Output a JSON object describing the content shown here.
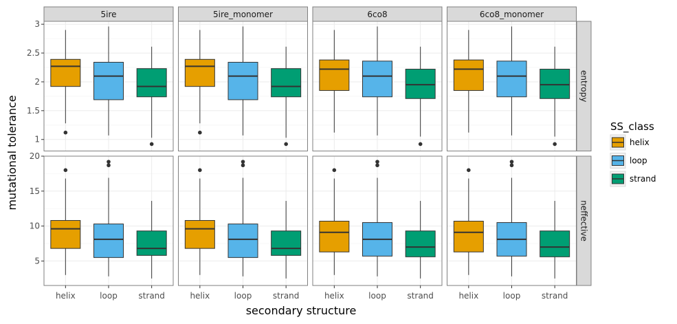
{
  "chart_data": {
    "type": "box",
    "xlabel": "secondary structure",
    "ylabel": "mutational tolerance",
    "categories": [
      "helix",
      "loop",
      "strand"
    ],
    "facet_columns": [
      "5ire",
      "5ire_monomer",
      "6co8",
      "6co8_monomer"
    ],
    "facet_rows": [
      {
        "name": "entropy",
        "ylim": [
          0.8,
          3.05
        ],
        "ticks": [
          1,
          1.5,
          2,
          2.5,
          3
        ],
        "tick_labels": [
          "1",
          "1.5",
          "2",
          "2.5",
          "3"
        ]
      },
      {
        "name": "neffective",
        "ylim": [
          1.5,
          20.0
        ],
        "ticks": [
          5,
          10,
          15,
          20
        ],
        "tick_labels": [
          "5",
          "10",
          "15",
          "20"
        ]
      }
    ],
    "legend": {
      "title": "SS_class",
      "position": "right",
      "items": [
        {
          "label": "helix",
          "color": "#E69F00"
        },
        {
          "label": "loop",
          "color": "#56B4E9"
        },
        {
          "label": "strand",
          "color": "#009E73"
        }
      ]
    },
    "panels": {
      "entropy": {
        "5ire": [
          {
            "category": "helix",
            "whisker_low": 1.28,
            "q1": 1.92,
            "median": 2.27,
            "q3": 2.39,
            "whisker_high": 2.9,
            "outliers": [
              1.12
            ]
          },
          {
            "category": "loop",
            "whisker_low": 1.07,
            "q1": 1.69,
            "median": 2.1,
            "q3": 2.34,
            "whisker_high": 2.96,
            "outliers": []
          },
          {
            "category": "strand",
            "whisker_low": 1.03,
            "q1": 1.74,
            "median": 1.92,
            "q3": 2.23,
            "whisker_high": 2.61,
            "outliers": [
              0.92
            ]
          }
        ],
        "5ire_monomer": [
          {
            "category": "helix",
            "whisker_low": 1.28,
            "q1": 1.92,
            "median": 2.27,
            "q3": 2.39,
            "whisker_high": 2.9,
            "outliers": [
              1.12
            ]
          },
          {
            "category": "loop",
            "whisker_low": 1.07,
            "q1": 1.69,
            "median": 2.1,
            "q3": 2.34,
            "whisker_high": 2.96,
            "outliers": []
          },
          {
            "category": "strand",
            "whisker_low": 1.03,
            "q1": 1.74,
            "median": 1.92,
            "q3": 2.23,
            "whisker_high": 2.61,
            "outliers": [
              0.92
            ]
          }
        ],
        "6co8": [
          {
            "category": "helix",
            "whisker_low": 1.12,
            "q1": 1.85,
            "median": 2.22,
            "q3": 2.38,
            "whisker_high": 2.9,
            "outliers": []
          },
          {
            "category": "loop",
            "whisker_low": 1.07,
            "q1": 1.74,
            "median": 2.1,
            "q3": 2.36,
            "whisker_high": 2.96,
            "outliers": []
          },
          {
            "category": "strand",
            "whisker_low": 1.05,
            "q1": 1.71,
            "median": 1.95,
            "q3": 2.22,
            "whisker_high": 2.61,
            "outliers": [
              0.92
            ]
          }
        ],
        "6co8_monomer": [
          {
            "category": "helix",
            "whisker_low": 1.12,
            "q1": 1.85,
            "median": 2.22,
            "q3": 2.38,
            "whisker_high": 2.9,
            "outliers": []
          },
          {
            "category": "loop",
            "whisker_low": 1.07,
            "q1": 1.74,
            "median": 2.1,
            "q3": 2.36,
            "whisker_high": 2.96,
            "outliers": []
          },
          {
            "category": "strand",
            "whisker_low": 1.05,
            "q1": 1.71,
            "median": 1.95,
            "q3": 2.22,
            "whisker_high": 2.61,
            "outliers": [
              0.92
            ]
          }
        ]
      },
      "neffective": {
        "5ire": [
          {
            "category": "helix",
            "whisker_low": 3.0,
            "q1": 6.8,
            "median": 9.6,
            "q3": 10.8,
            "whisker_high": 16.8,
            "outliers": [
              18.0
            ]
          },
          {
            "category": "loop",
            "whisker_low": 2.8,
            "q1": 5.5,
            "median": 8.1,
            "q3": 10.3,
            "whisker_high": 16.9,
            "outliers": [
              18.7,
              19.2
            ]
          },
          {
            "category": "strand",
            "whisker_low": 2.5,
            "q1": 5.8,
            "median": 6.8,
            "q3": 9.3,
            "whisker_high": 13.6,
            "outliers": []
          }
        ],
        "5ire_monomer": [
          {
            "category": "helix",
            "whisker_low": 3.0,
            "q1": 6.8,
            "median": 9.6,
            "q3": 10.8,
            "whisker_high": 16.8,
            "outliers": [
              18.0
            ]
          },
          {
            "category": "loop",
            "whisker_low": 2.8,
            "q1": 5.5,
            "median": 8.1,
            "q3": 10.3,
            "whisker_high": 16.9,
            "outliers": [
              18.7,
              19.2
            ]
          },
          {
            "category": "strand",
            "whisker_low": 2.5,
            "q1": 5.8,
            "median": 6.8,
            "q3": 9.3,
            "whisker_high": 13.6,
            "outliers": []
          }
        ],
        "6co8": [
          {
            "category": "helix",
            "whisker_low": 3.0,
            "q1": 6.3,
            "median": 9.1,
            "q3": 10.7,
            "whisker_high": 16.8,
            "outliers": [
              18.0
            ]
          },
          {
            "category": "loop",
            "whisker_low": 2.8,
            "q1": 5.7,
            "median": 8.1,
            "q3": 10.5,
            "whisker_high": 16.9,
            "outliers": [
              18.7,
              19.2
            ]
          },
          {
            "category": "strand",
            "whisker_low": 2.5,
            "q1": 5.6,
            "median": 7.0,
            "q3": 9.3,
            "whisker_high": 13.6,
            "outliers": []
          }
        ],
        "6co8_monomer": [
          {
            "category": "helix",
            "whisker_low": 3.0,
            "q1": 6.3,
            "median": 9.1,
            "q3": 10.7,
            "whisker_high": 16.8,
            "outliers": [
              18.0
            ]
          },
          {
            "category": "loop",
            "whisker_low": 2.8,
            "q1": 5.7,
            "median": 8.1,
            "q3": 10.5,
            "whisker_high": 16.9,
            "outliers": [
              18.7,
              19.2
            ]
          },
          {
            "category": "strand",
            "whisker_low": 2.5,
            "q1": 5.6,
            "median": 7.0,
            "q3": 9.3,
            "whisker_high": 13.6,
            "outliers": []
          }
        ]
      }
    },
    "grid": true,
    "style_colors": {
      "panel_background": "#ffffff",
      "panel_border": "#7f7f7f",
      "strip_fill": "#d9d9d9",
      "grid_major": "#ebebeb",
      "grid_minor": "#f5f5f5",
      "box_outline": "#333333",
      "outlier": "#333333"
    }
  }
}
